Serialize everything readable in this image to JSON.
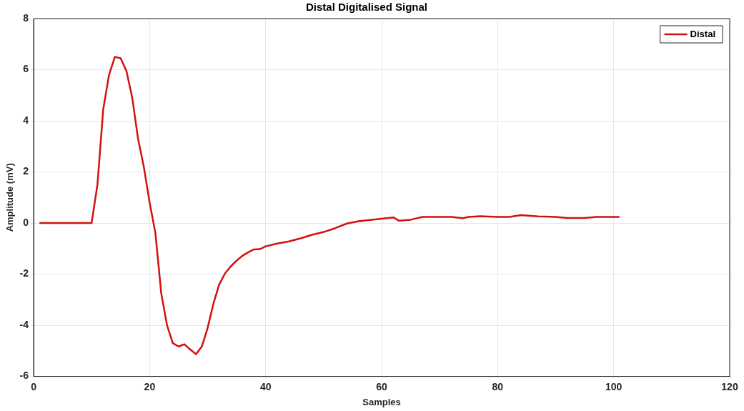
{
  "chart_data": {
    "type": "line",
    "title": "Distal Digitalised Signal",
    "xlabel": "Samples",
    "ylabel": "Amplitude (mV)",
    "xlim": [
      0,
      120
    ],
    "xticks": [
      0,
      20,
      40,
      60,
      80,
      100,
      120
    ],
    "ylim": [
      -6,
      8
    ],
    "yticks": [
      -6,
      -4,
      -2,
      0,
      2,
      4,
      6,
      8
    ],
    "grid": true,
    "legend": "top right",
    "marker": "none",
    "line_style": "solid",
    "series": [
      {
        "name": "Distal",
        "color": "#d40f0f",
        "x": [
          1,
          10,
          11,
          12,
          13,
          14,
          15,
          16,
          17,
          18,
          19,
          20,
          21,
          22,
          23,
          24,
          25,
          26,
          27,
          28,
          29,
          30,
          31,
          32,
          33,
          34,
          35,
          36,
          37,
          38,
          39,
          40,
          42,
          44,
          46,
          48,
          50,
          52,
          54,
          56,
          58,
          60,
          62,
          63,
          65,
          67,
          72,
          74,
          75,
          77,
          80,
          82,
          84,
          87,
          90,
          92,
          95,
          97,
          101
        ],
        "values": [
          0,
          0,
          1.5,
          4.45,
          5.8,
          6.5,
          6.45,
          5.95,
          4.9,
          3.3,
          2.2,
          0.8,
          -0.4,
          -2.75,
          -4.0,
          -4.7,
          -4.83,
          -4.74,
          -4.95,
          -5.13,
          -4.83,
          -4.1,
          -3.15,
          -2.4,
          -1.97,
          -1.69,
          -1.47,
          -1.28,
          -1.14,
          -1.03,
          -1.02,
          -0.91,
          -0.8,
          -0.72,
          -0.6,
          -0.46,
          -0.35,
          -0.2,
          -0.02,
          0.07,
          0.12,
          0.17,
          0.22,
          0.09,
          0.13,
          0.24,
          0.24,
          0.19,
          0.24,
          0.27,
          0.24,
          0.24,
          0.31,
          0.26,
          0.24,
          0.2,
          0.2,
          0.24,
          0.24
        ]
      }
    ]
  }
}
